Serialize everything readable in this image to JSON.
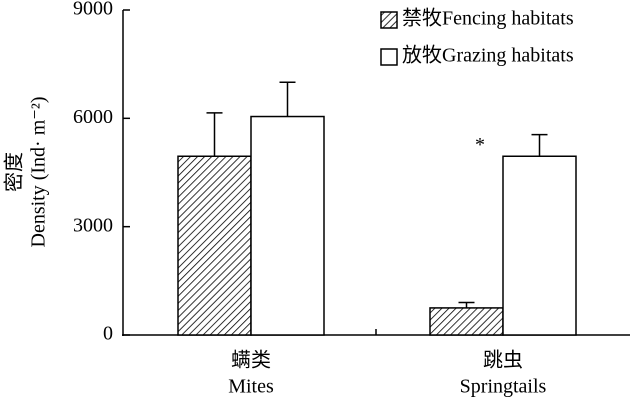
{
  "chart_data": {
    "type": "bar",
    "ylabel_zh": "密度",
    "ylabel": "Density (Ind· m⁻²)",
    "categories": [
      "Mites",
      "Springtails"
    ],
    "categories_zh": [
      "螨类",
      "跳虫"
    ],
    "series": [
      {
        "name": "禁牧Fencing habitats",
        "color": "#000000",
        "pattern": "hatch",
        "values": [
          4950,
          750
        ],
        "errors": [
          1200,
          150
        ]
      },
      {
        "name": "放牧Grazing habitats",
        "color": "#ffffff",
        "values": [
          6050,
          4950
        ],
        "errors": [
          950,
          600
        ]
      }
    ],
    "annotation": "*",
    "ylim": [
      0,
      9000
    ],
    "yticks": [
      0,
      3000,
      6000,
      9000
    ],
    "grid": false
  }
}
